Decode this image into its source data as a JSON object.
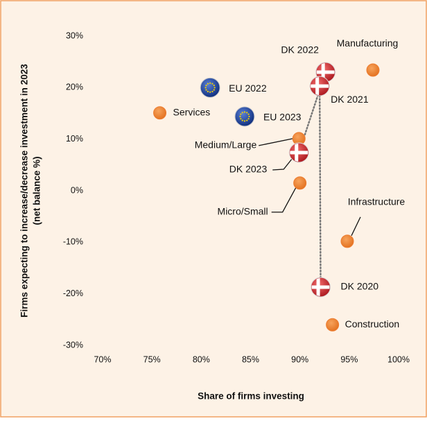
{
  "chart_data": {
    "type": "scatter",
    "xlabel": "Share of firms investing",
    "ylabel": [
      "Firms expecting to increase/decrease investment in 2023",
      "(net balance %)"
    ],
    "xlim": [
      70,
      100
    ],
    "ylim": [
      -30,
      30
    ],
    "xticks": [
      {
        "value": 70,
        "label": "70%"
      },
      {
        "value": 75,
        "label": "75%"
      },
      {
        "value": 80,
        "label": "80%"
      },
      {
        "value": 85,
        "label": "85%"
      },
      {
        "value": 90,
        "label": "90%"
      },
      {
        "value": 95,
        "label": "95%"
      },
      {
        "value": 100,
        "label": "100%"
      }
    ],
    "yticks": [
      {
        "value": -30,
        "label": "-30%"
      },
      {
        "value": -20,
        "label": "-20%"
      },
      {
        "value": -10,
        "label": "-10%"
      },
      {
        "value": 0,
        "label": "0%"
      },
      {
        "value": 10,
        "label": "10%"
      },
      {
        "value": 20,
        "label": "20%"
      },
      {
        "value": 30,
        "label": "30%"
      }
    ],
    "color": "#ed7d31",
    "points": [
      {
        "label": "Manufacturing",
        "x": 97.4,
        "y": 23.4,
        "marker": "circle"
      },
      {
        "label": "Services",
        "x": 75.8,
        "y": 15.1,
        "marker": "circle"
      },
      {
        "label": "EU 2022",
        "x": 80.9,
        "y": 20.0,
        "marker": "eu"
      },
      {
        "label": "EU 2023",
        "x": 84.4,
        "y": 14.4,
        "marker": "eu"
      },
      {
        "label": "DK 2022",
        "x": 92.6,
        "y": 23.0,
        "marker": "dk"
      },
      {
        "label": "DK 2021",
        "x": 92.0,
        "y": 20.3,
        "marker": "dk"
      },
      {
        "label": "Medium/Large",
        "x": 89.9,
        "y": 10.1,
        "marker": "circle"
      },
      {
        "label": "DK 2023",
        "x": 89.9,
        "y": 7.4,
        "marker": "dk"
      },
      {
        "label": "Micro/Small",
        "x": 90.0,
        "y": 1.5,
        "marker": "circle"
      },
      {
        "label": "Infrastructure",
        "x": 94.8,
        "y": -9.8,
        "marker": "circle"
      },
      {
        "label": "DK 2020",
        "x": 92.1,
        "y": -18.7,
        "marker": "dk"
      },
      {
        "label": "Construction",
        "x": 93.3,
        "y": -26.0,
        "marker": "circle"
      }
    ]
  }
}
